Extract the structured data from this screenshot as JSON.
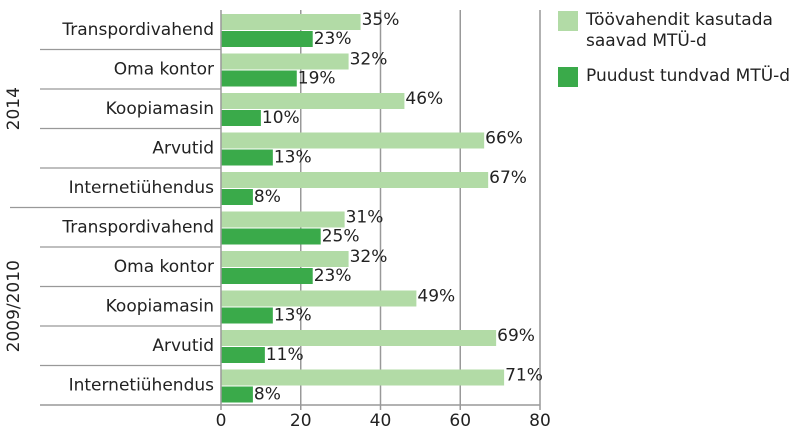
{
  "chart_data": {
    "type": "bar",
    "orientation": "horizontal",
    "groups": [
      {
        "name": "2014",
        "categories": [
          "Transpordivahend",
          "Oma kontor",
          "Koopiamasin",
          "Arvutid",
          "Internetiühendus"
        ]
      },
      {
        "name": "2009/2010",
        "categories": [
          "Transpordivahend",
          "Oma kontor",
          "Koopiamasin",
          "Arvutid",
          "Internetiühendus"
        ]
      }
    ],
    "series": [
      {
        "name": "Töövahendit kasutada saavad MTÜ-d",
        "color": "#b2dba6",
        "values": [
          35,
          32,
          46,
          66,
          67,
          31,
          32,
          49,
          69,
          71
        ],
        "value_labels": [
          "35%",
          "32%",
          "46%",
          "66%",
          "67%",
          "31%",
          "32%",
          "49%",
          "69%",
          "71%"
        ]
      },
      {
        "name": "Puudust tundvad MTÜ-d",
        "color": "#3aaa4a",
        "values": [
          23,
          19,
          10,
          13,
          8,
          25,
          23,
          13,
          11,
          8
        ],
        "value_labels": [
          "23%",
          "19%",
          "10%",
          "13%",
          "8%",
          "25%",
          "23%",
          "13%",
          "11%",
          "8%"
        ]
      }
    ],
    "xlim": [
      0,
      80
    ],
    "xticks": [
      0,
      20,
      40,
      60,
      80
    ],
    "grid": true
  }
}
